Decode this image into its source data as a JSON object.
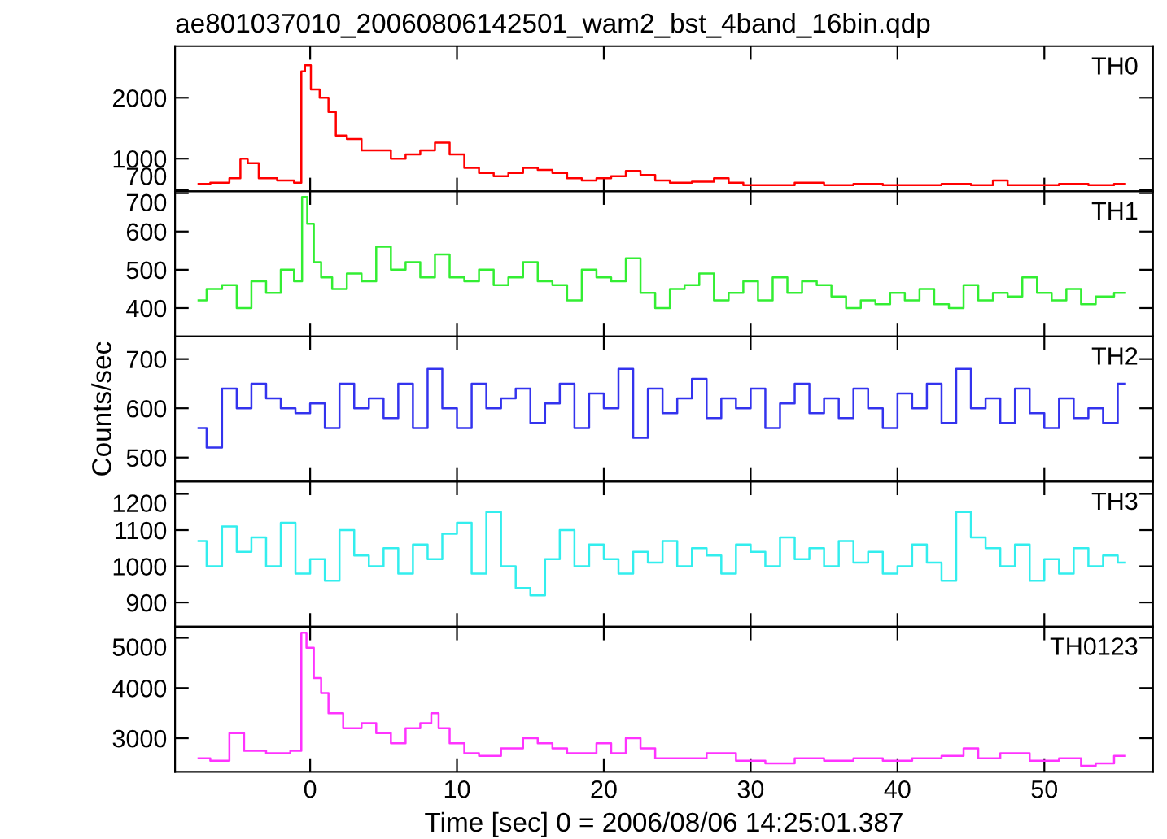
{
  "chart_data": [
    {
      "type": "step",
      "title": "ae801037010_20060806142501_wam2_bst_4band_16bin.qdp",
      "log": "y",
      "xlim": [
        -9.2,
        57.4
      ],
      "xticks": [
        0,
        10,
        20,
        30,
        40,
        50
      ],
      "ylim": [
        690,
        3600
      ],
      "yticks": [
        700,
        1000,
        2000
      ],
      "tick_labels": "y",
      "legend": "top right",
      "series": [
        {
          "name": "TH0",
          "color": "#ff0000",
          "x": [
            -7.6,
            -6,
            -5,
            -4.5,
            -4,
            -3,
            -1.5,
            -0.7,
            -0.5,
            -0.2,
            0.3,
            1,
            1.5,
            2,
            3,
            4,
            5,
            6,
            7,
            8,
            9,
            10,
            11,
            12,
            13,
            14,
            15,
            16,
            17,
            18,
            19,
            20,
            21,
            22,
            23,
            24,
            25,
            27,
            28,
            29,
            30,
            32,
            34,
            36,
            38,
            40,
            42,
            44,
            46,
            47,
            48,
            50,
            52,
            54,
            55.5
          ],
          "values": [
            750,
            760,
            800,
            1000,
            950,
            800,
            780,
            760,
            2700,
            2900,
            2200,
            2000,
            1700,
            1300,
            1250,
            1100,
            1100,
            1000,
            1050,
            1100,
            1200,
            1050,
            900,
            850,
            820,
            850,
            900,
            880,
            850,
            800,
            780,
            800,
            820,
            870,
            830,
            780,
            760,
            770,
            800,
            760,
            740,
            740,
            760,
            740,
            750,
            740,
            740,
            750,
            740,
            780,
            740,
            740,
            750,
            740,
            750
          ]
        }
      ]
    },
    {
      "type": "step",
      "xlim": [
        -9.2,
        57.4
      ],
      "xticks": [
        0,
        10,
        20,
        30,
        40,
        50
      ],
      "ylim": [
        326,
        705
      ],
      "yticks": [
        400,
        500,
        600,
        700
      ],
      "tick_labels": "y",
      "legend": "top right",
      "series": [
        {
          "name": "TH1",
          "color": "#33ee33",
          "x": [
            -7.6,
            -6.5,
            -5.5,
            -4.5,
            -3.5,
            -2.5,
            -1.5,
            -0.7,
            -0.4,
            0,
            0.5,
            1,
            2,
            3,
            4,
            5,
            6,
            7,
            8,
            9,
            10,
            11,
            12,
            13,
            14,
            15,
            16,
            17,
            18,
            19,
            20,
            21,
            22,
            23,
            24,
            25,
            26,
            27,
            28,
            29,
            30,
            31,
            32,
            33,
            34,
            35,
            36,
            37,
            38,
            39,
            40,
            41,
            42,
            43,
            44,
            45,
            46,
            47,
            48,
            49,
            50,
            51,
            52,
            53,
            54,
            55.5
          ],
          "values": [
            420,
            450,
            460,
            400,
            470,
            440,
            500,
            470,
            690,
            620,
            520,
            480,
            450,
            490,
            470,
            560,
            500,
            520,
            480,
            540,
            480,
            470,
            500,
            460,
            480,
            520,
            470,
            460,
            420,
            500,
            480,
            470,
            530,
            440,
            400,
            450,
            460,
            490,
            420,
            440,
            470,
            420,
            480,
            440,
            470,
            460,
            430,
            400,
            420,
            410,
            440,
            420,
            450,
            410,
            400,
            460,
            420,
            440,
            430,
            480,
            440,
            420,
            450,
            410,
            430,
            440
          ]
        }
      ]
    },
    {
      "type": "step",
      "xlim": [
        -9.2,
        57.4
      ],
      "xticks": [
        0,
        10,
        20,
        30,
        40,
        50
      ],
      "ylim": [
        451,
        746
      ],
      "yticks": [
        500,
        600,
        700
      ],
      "tick_labels": "y",
      "legend": "top right",
      "ylabel": "Counts/sec",
      "series": [
        {
          "name": "TH2",
          "color": "#3333ee",
          "x": [
            -7.6,
            -6.5,
            -5.5,
            -4.5,
            -3.5,
            -2.5,
            -1.5,
            -0.5,
            0.5,
            1.5,
            2.5,
            3.5,
            4.5,
            5.5,
            6.5,
            7.5,
            8.5,
            9.5,
            10.5,
            11.5,
            12.5,
            13.5,
            14.5,
            15.5,
            16.5,
            17.5,
            18.5,
            19.5,
            20.5,
            21.5,
            22.5,
            23.5,
            24.5,
            25.5,
            26.5,
            27.5,
            28.5,
            29.5,
            30.5,
            31.5,
            32.5,
            33.5,
            34.5,
            35.5,
            36.5,
            37.5,
            38.5,
            39.5,
            40.5,
            41.5,
            42.5,
            43.5,
            44.5,
            45.5,
            46.5,
            47.5,
            48.5,
            49.5,
            50.5,
            51.5,
            52.5,
            53.5,
            54.5,
            55.5
          ],
          "values": [
            560,
            520,
            640,
            600,
            650,
            620,
            600,
            590,
            610,
            560,
            650,
            600,
            620,
            580,
            650,
            560,
            680,
            600,
            560,
            650,
            600,
            620,
            640,
            570,
            610,
            650,
            560,
            630,
            600,
            680,
            540,
            640,
            590,
            620,
            660,
            580,
            620,
            600,
            640,
            560,
            610,
            650,
            590,
            620,
            580,
            640,
            600,
            560,
            630,
            600,
            650,
            570,
            680,
            600,
            620,
            570,
            640,
            590,
            560,
            620,
            580,
            600,
            570,
            650
          ]
        }
      ]
    },
    {
      "type": "step",
      "xlim": [
        -9.2,
        57.4
      ],
      "xticks": [
        0,
        10,
        20,
        30,
        40,
        50
      ],
      "ylim": [
        833,
        1234
      ],
      "yticks": [
        900,
        1000,
        1100,
        1200
      ],
      "tick_labels": "y",
      "legend": "top right",
      "series": [
        {
          "name": "TH3",
          "color": "#33eeee",
          "x": [
            -7.6,
            -6.5,
            -5.5,
            -4.5,
            -3.5,
            -2.5,
            -1.5,
            -0.5,
            0.5,
            1.5,
            2.5,
            3.5,
            4.5,
            5.5,
            6.5,
            7.5,
            8.5,
            9.5,
            10.5,
            11.5,
            12.5,
            13.5,
            14.5,
            15.5,
            16.5,
            17.5,
            18.5,
            19.5,
            20.5,
            21.5,
            22.5,
            23.5,
            24.5,
            25.5,
            26.5,
            27.5,
            28.5,
            29.5,
            30.5,
            31.5,
            32.5,
            33.5,
            34.5,
            35.5,
            36.5,
            37.5,
            38.5,
            39.5,
            40.5,
            41.5,
            42.5,
            43.5,
            44.5,
            45.5,
            46.5,
            47.5,
            48.5,
            49.5,
            50.5,
            51.5,
            52.5,
            53.5,
            54.5,
            55.5
          ],
          "values": [
            1070,
            1000,
            1110,
            1040,
            1080,
            1000,
            1120,
            980,
            1020,
            960,
            1100,
            1030,
            1000,
            1050,
            980,
            1060,
            1020,
            1090,
            1120,
            980,
            1150,
            1000,
            940,
            920,
            1020,
            1100,
            1000,
            1060,
            1020,
            980,
            1040,
            1010,
            1070,
            1000,
            1050,
            1030,
            980,
            1060,
            1040,
            1000,
            1080,
            1020,
            1050,
            1000,
            1070,
            1010,
            1040,
            980,
            1000,
            1060,
            1010,
            960,
            1150,
            1080,
            1050,
            1000,
            1060,
            960,
            1020,
            980,
            1050,
            1000,
            1030,
            1010
          ]
        }
      ]
    },
    {
      "type": "step",
      "xlim": [
        -9.2,
        57.4
      ],
      "xticks": [
        0,
        10,
        20,
        30,
        40,
        50
      ],
      "ylim": [
        2330,
        5220
      ],
      "yticks": [
        3000,
        4000,
        5000
      ],
      "legend": "top right",
      "xlabel": "Time [sec] 0 = 2006/08/06 14:25:01.387",
      "series": [
        {
          "name": "TH0123",
          "color": "#ff33ff",
          "x": [
            -7.6,
            -6,
            -5,
            -4,
            -2,
            -0.7,
            -0.5,
            0,
            0.5,
            1,
            1.5,
            3,
            4,
            5,
            6,
            7,
            8,
            8.5,
            9,
            10,
            11,
            12,
            14,
            15,
            16,
            17,
            18,
            19,
            20,
            21,
            22,
            23,
            24,
            26,
            28,
            30,
            32,
            34,
            36,
            38,
            40,
            42,
            44,
            45,
            46,
            48,
            50,
            52,
            53,
            54,
            55.5
          ],
          "values": [
            2600,
            2550,
            3100,
            2750,
            2700,
            2750,
            5100,
            4800,
            4200,
            3900,
            3500,
            3200,
            3300,
            3100,
            2900,
            3200,
            3300,
            3500,
            3200,
            2900,
            2700,
            2650,
            2800,
            3000,
            2900,
            2800,
            2700,
            2700,
            2900,
            2700,
            3000,
            2800,
            2600,
            2600,
            2700,
            2550,
            2500,
            2600,
            2550,
            2600,
            2550,
            2600,
            2650,
            2800,
            2600,
            2700,
            2550,
            2600,
            2450,
            2500,
            2650
          ]
        }
      ]
    }
  ]
}
